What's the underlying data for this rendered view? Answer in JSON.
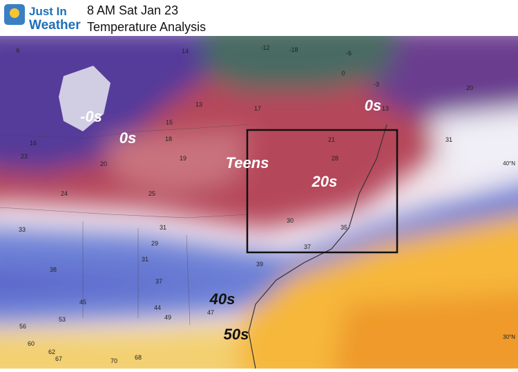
{
  "header": {
    "logo_line1": "Just In",
    "logo_line2": "Weather",
    "title": "8 AM Sat Jan 23",
    "subtitle": "Temperature Analysis"
  },
  "labels": {
    "zero_west": "-0s",
    "zero_mid": "0s",
    "zero_ne": "0s",
    "teens": "Teens",
    "twenties": "20s",
    "forties": "40s",
    "fifties": "50s"
  },
  "latitudes": [
    "40°N",
    "30°N"
  ],
  "stations": [
    6,
    14,
    -12,
    -18,
    0,
    13,
    17,
    16,
    18,
    21,
    23,
    20,
    28,
    24,
    25,
    30,
    33,
    31,
    35,
    29,
    37,
    38,
    31,
    39,
    45,
    37,
    47,
    44,
    49,
    56,
    53,
    60,
    62,
    67,
    70,
    68,
    -6,
    13,
    20,
    31,
    -3,
    15,
    19
  ]
}
